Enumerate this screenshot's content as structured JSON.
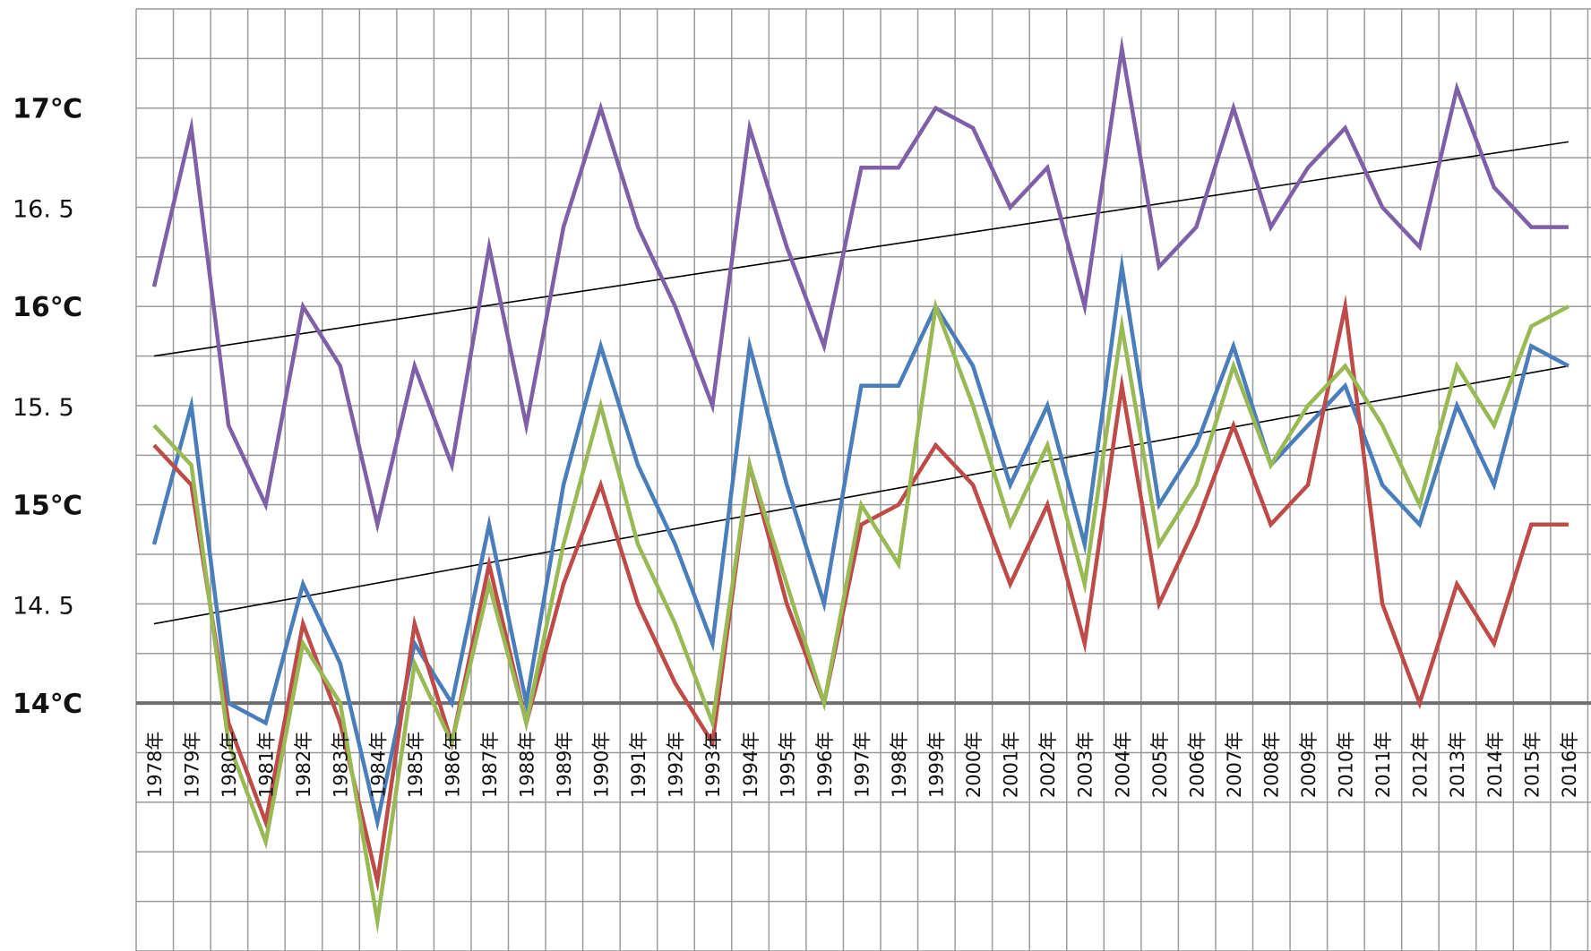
{
  "chart_data": {
    "type": "line",
    "categories": [
      "1978年",
      "1979年",
      "1980年",
      "1981年",
      "1982年",
      "1983年",
      "1984年",
      "1985年",
      "1986年",
      "1987年",
      "1988年",
      "1989年",
      "1990年",
      "1991年",
      "1992年",
      "1993年",
      "1994年",
      "1995年",
      "1996年",
      "1997年",
      "1998年",
      "1999年",
      "2000年",
      "2001年",
      "2002年",
      "2003年",
      "2004年",
      "2005年",
      "2006年",
      "2007年",
      "2008年",
      "2009年",
      "2010年",
      "2011年",
      "2012年",
      "2013年",
      "2014年",
      "2015年",
      "2016年"
    ],
    "y_tick_labels": [
      {
        "value": 17.0,
        "label": "17℃",
        "major": true
      },
      {
        "value": 16.5,
        "label": "16. 5",
        "major": false
      },
      {
        "value": 16.0,
        "label": "16℃",
        "major": true
      },
      {
        "value": 15.5,
        "label": "15. 5",
        "major": false
      },
      {
        "value": 15.0,
        "label": "15℃",
        "major": true
      },
      {
        "value": 14.5,
        "label": "14. 5",
        "major": false
      },
      {
        "value": 14.0,
        "label": "14℃",
        "major": true
      }
    ],
    "ylim": [
      12.75,
      17.5
    ],
    "grid": true,
    "legend": "none",
    "title": "",
    "xlabel": "",
    "ylabel": "",
    "series": [
      {
        "color": "#7f60a8",
        "values": [
          16.1,
          16.9,
          15.4,
          15.0,
          16.0,
          15.7,
          14.9,
          15.7,
          15.2,
          16.3,
          15.4,
          16.4,
          17.0,
          16.4,
          16.0,
          15.5,
          16.9,
          16.3,
          15.8,
          16.7,
          16.7,
          17.0,
          16.9,
          16.5,
          16.7,
          16.0,
          17.3,
          16.2,
          16.4,
          17.0,
          16.4,
          16.7,
          16.9,
          16.5,
          16.3,
          17.1,
          16.6,
          16.4,
          16.4
        ]
      },
      {
        "color": "#4a7ebb",
        "values": [
          14.8,
          15.5,
          14.0,
          13.9,
          14.6,
          14.2,
          13.4,
          14.3,
          14.0,
          14.9,
          14.0,
          15.1,
          15.8,
          15.2,
          14.8,
          14.3,
          15.8,
          15.1,
          14.5,
          15.6,
          15.6,
          16.0,
          15.7,
          15.1,
          15.5,
          14.8,
          16.2,
          15.0,
          15.3,
          15.8,
          15.2,
          15.4,
          15.6,
          15.1,
          14.9,
          15.5,
          15.1,
          15.8,
          15.7
        ]
      },
      {
        "color": "#be4b48",
        "values": [
          15.3,
          15.1,
          13.9,
          13.4,
          14.4,
          13.9,
          13.1,
          14.4,
          13.8,
          14.7,
          13.9,
          14.6,
          15.1,
          14.5,
          14.1,
          13.8,
          15.2,
          14.5,
          14.0,
          14.9,
          15.0,
          15.3,
          15.1,
          14.6,
          15.0,
          14.3,
          15.6,
          14.5,
          14.9,
          15.4,
          14.9,
          15.1,
          16.0,
          14.5,
          14.0,
          14.6,
          14.3,
          14.9,
          14.9
        ]
      },
      {
        "color": "#98b954",
        "values": [
          15.4,
          15.2,
          13.8,
          13.3,
          14.3,
          14.0,
          12.9,
          14.2,
          13.8,
          14.6,
          13.9,
          14.8,
          15.5,
          14.8,
          14.4,
          13.9,
          15.2,
          14.6,
          14.0,
          15.0,
          14.7,
          16.0,
          15.5,
          14.9,
          15.3,
          14.6,
          15.9,
          14.8,
          15.1,
          15.7,
          15.2,
          15.5,
          15.7,
          15.4,
          15.0,
          15.7,
          15.4,
          15.9,
          16.0
        ]
      }
    ],
    "trend_lines": [
      {
        "color": "#000000",
        "from": [
          0,
          15.75
        ],
        "to": [
          38,
          16.83
        ]
      },
      {
        "color": "#000000",
        "from": [
          0,
          14.4
        ],
        "to": [
          38,
          15.7
        ]
      }
    ]
  }
}
